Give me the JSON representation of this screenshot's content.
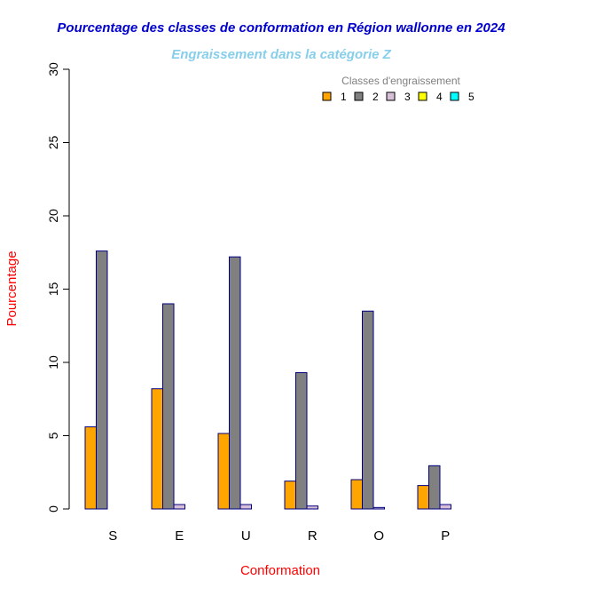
{
  "chart_data": {
    "type": "bar",
    "title": "Pourcentage des classes de conformation en Région wallonne en 2024",
    "subtitle": "Engraissement dans la catégorie Z",
    "xlabel": "Conformation",
    "ylabel": "Pourcentage",
    "ylim": [
      0,
      30
    ],
    "yticks": [
      "0",
      "5",
      "10",
      "15",
      "20",
      "25",
      "30"
    ],
    "categories": [
      "S",
      "E",
      "U",
      "R",
      "O",
      "P"
    ],
    "legend": {
      "title": "Classes d'engraissement",
      "placement": "top-right"
    },
    "series": [
      {
        "name": "1",
        "color": "#FFA500",
        "values": [
          5.6,
          8.2,
          5.15,
          1.9,
          2.0,
          1.6
        ]
      },
      {
        "name": "2",
        "color": "#808080",
        "values": [
          17.6,
          14.0,
          17.2,
          9.3,
          13.5,
          2.95
        ]
      },
      {
        "name": "3",
        "color": "#D8BFD8",
        "values": [
          0.0,
          0.3,
          0.3,
          0.2,
          0.1,
          0.3
        ]
      },
      {
        "name": "4",
        "color": "#FFFF00",
        "values": [
          0.0,
          0.0,
          0.0,
          0.0,
          0.0,
          0.0
        ]
      },
      {
        "name": "5",
        "color": "#00FFFF",
        "values": [
          0.0,
          0.0,
          0.0,
          0.0,
          0.0,
          0.0
        ]
      }
    ],
    "colors": {
      "title": "#0000CD",
      "subtitle": "#87CEEB",
      "axis_label": "#FF0000",
      "bar_border": "#000080"
    }
  }
}
